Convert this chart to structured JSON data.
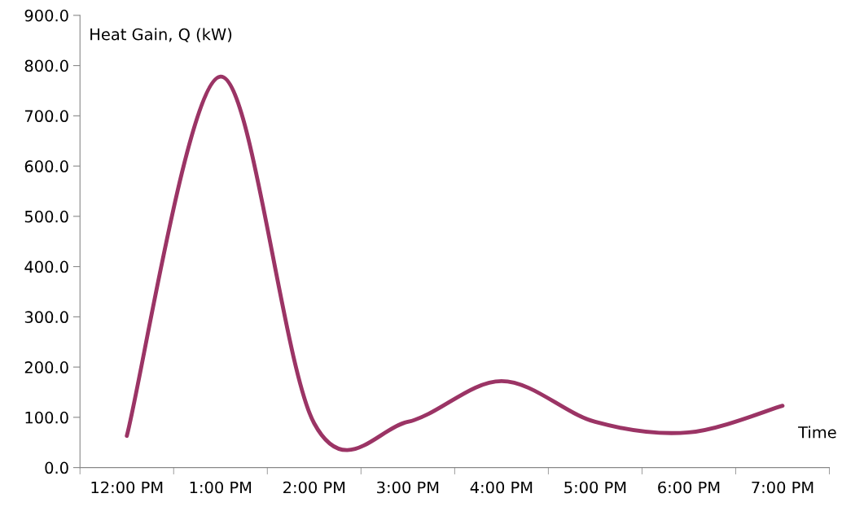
{
  "chart_data": {
    "type": "line",
    "xlabel": "Time",
    "ylabel": "Heat Gain, Q (kW)",
    "categories": [
      "12:00 PM",
      "1:00 PM",
      "2:00 PM",
      "3:00 PM",
      "4:00 PM",
      "5:00 PM",
      "6:00 PM",
      "7:00 PM"
    ],
    "series": [
      {
        "color": "#9b3465",
        "values": [
          63,
          778,
          88,
          91,
          172,
          91,
          70,
          123
        ]
      }
    ],
    "ylim": [
      0,
      900
    ],
    "yticks": [
      {
        "value": 0,
        "label": "0.0"
      },
      {
        "value": 100,
        "label": "100.0"
      },
      {
        "value": 200,
        "label": "200.0"
      },
      {
        "value": 300,
        "label": "300.0"
      },
      {
        "value": 400,
        "label": "400.0"
      },
      {
        "value": 500,
        "label": "500.0"
      },
      {
        "value": 600,
        "label": "600.0"
      },
      {
        "value": 700,
        "label": "700.0"
      },
      {
        "value": 800,
        "label": "800.0"
      },
      {
        "value": 900,
        "label": "900.0"
      }
    ],
    "grid": false,
    "legend": false,
    "marker": "none",
    "line_style": "solid"
  }
}
